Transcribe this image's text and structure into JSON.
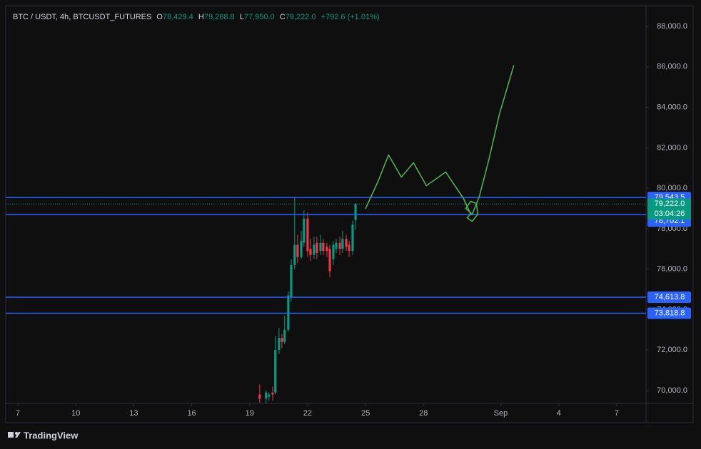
{
  "header": {
    "symbol": "BTC / USDT, 4h, BTCUSDT_FUTURES",
    "o_label": "O",
    "o": "78,429.4",
    "h_label": "H",
    "h": "79,268.8",
    "l_label": "L",
    "l": "77,950.0",
    "c_label": "C",
    "c": "79,222.0",
    "change": "+792.6 (+1.01%)"
  },
  "brand": "TradingView",
  "chart_data": {
    "type": "candlestick",
    "x": [
      12.52,
      12.85,
      13.0,
      13.19,
      13.33,
      13.52,
      13.67,
      13.81,
      14.0,
      14.15,
      14.33,
      14.48,
      14.67,
      14.81,
      15.0,
      15.15,
      15.33,
      15.48,
      15.67,
      15.81,
      16.0,
      16.15,
      16.33,
      16.48,
      16.67,
      16.81,
      17.0,
      17.15,
      17.33,
      17.48
    ],
    "open": [
      69800,
      69600,
      69700,
      69900,
      69900,
      72000,
      72600,
      72400,
      73000,
      74600,
      76200,
      77200,
      76600,
      77300,
      78500,
      77000,
      76700,
      77300,
      76900,
      77300,
      77100,
      77000,
      76500,
      77000,
      77300,
      77000,
      77500,
      77200,
      76900,
      78429.4
    ],
    "high": [
      70300,
      70000,
      69900,
      70200,
      72700,
      73100,
      72800,
      73700,
      74900,
      76500,
      79543.5,
      77700,
      77900,
      78900,
      78800,
      77500,
      77600,
      77600,
      77700,
      77500,
      77300,
      77200,
      77400,
      77500,
      77600,
      77900,
      77700,
      77400,
      78400,
      79268.8
    ],
    "low": [
      69400,
      69300,
      69500,
      69500,
      69800,
      71800,
      72100,
      72300,
      72900,
      74400,
      76000,
      76300,
      76500,
      77100,
      76600,
      76400,
      76500,
      76500,
      76700,
      76700,
      76600,
      75600,
      76200,
      76800,
      76700,
      76800,
      76900,
      76600,
      76700,
      77950
    ],
    "close": [
      69600,
      69900,
      69800,
      69800,
      72000,
      72600,
      72400,
      73000,
      74700,
      76200,
      77200,
      76600,
      77400,
      78500,
      76900,
      76700,
      77200,
      76800,
      77300,
      76900,
      76900,
      75900,
      77200,
      77300,
      77000,
      77500,
      77100,
      76900,
      78200,
      79222
    ],
    "up_color": "#089981",
    "down_color": "#f23645",
    "xlim": [
      -0.63,
      32.52
    ],
    "xticks": [
      {
        "value": 0,
        "label": "7"
      },
      {
        "value": 3,
        "label": "10"
      },
      {
        "value": 6,
        "label": "13"
      },
      {
        "value": 9,
        "label": "16"
      },
      {
        "value": 12,
        "label": "19"
      },
      {
        "value": 15,
        "label": "22"
      },
      {
        "value": 18,
        "label": "25"
      },
      {
        "value": 21,
        "label": "28"
      },
      {
        "value": 25,
        "label": "Sep"
      },
      {
        "value": 28,
        "label": "4"
      },
      {
        "value": 31,
        "label": "7"
      }
    ],
    "ylim": [
      69364,
      89024
    ],
    "yticks": [
      {
        "value": 70000,
        "label": "70,000.0"
      },
      {
        "value": 72000,
        "label": "72,000.0"
      },
      {
        "value": 74000,
        "label": "74,000.0"
      },
      {
        "value": 76000,
        "label": "76,000.0"
      },
      {
        "value": 78000,
        "label": "78,000.0"
      },
      {
        "value": 80000,
        "label": "80,000.0"
      },
      {
        "value": 82000,
        "label": "82,000.0"
      },
      {
        "value": 84000,
        "label": "84,000.0"
      },
      {
        "value": 86000,
        "label": "86,000.0"
      },
      {
        "value": 88000,
        "label": "88,000.0"
      }
    ],
    "grid": false,
    "levels": [
      {
        "value": 79543.5,
        "label": "79,543.5"
      },
      {
        "value": 78702.1,
        "label": "78,702.1"
      },
      {
        "value": 74613.8,
        "label": "74,613.8"
      },
      {
        "value": 73818.8,
        "label": "73,818.8"
      }
    ],
    "level_color": "#2962ff",
    "last_price": {
      "value": 79222,
      "label": "79,222.0",
      "countdown": "03:04:26"
    },
    "drawing": {
      "color": "#4caf50",
      "x": [
        18.0,
        18.63,
        19.19,
        19.85,
        20.48,
        21.15,
        22.15,
        23.07,
        23.44,
        23.26,
        23.52,
        23.81,
        23.74,
        23.44,
        23.19,
        23.52,
        23.89,
        24.37,
        24.93,
        25.67
      ],
      "y": [
        79000,
        80305,
        81646,
        80552,
        81258,
        80128,
        80799,
        79493,
        78717,
        78540,
        78364,
        78717,
        79246,
        79352,
        79000,
        78717,
        79599,
        81364,
        83658,
        86059
      ]
    }
  }
}
